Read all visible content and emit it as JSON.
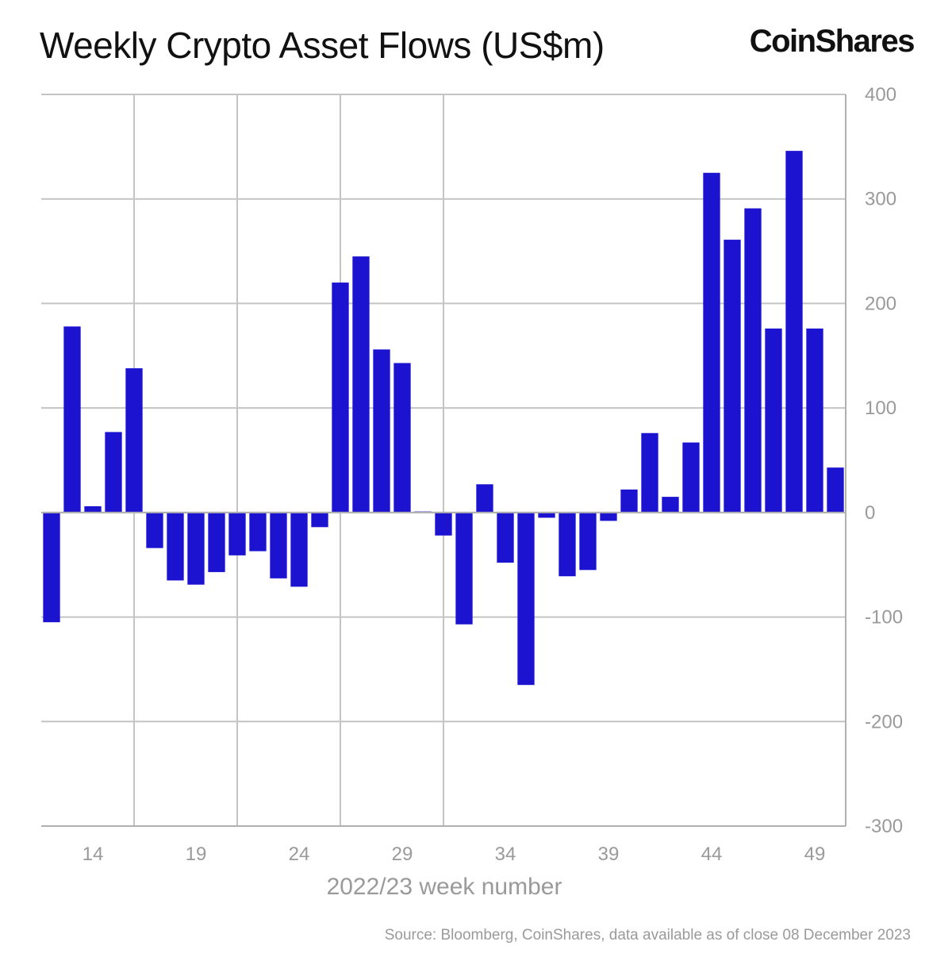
{
  "title": "Weekly Crypto Asset Flows (US$m)",
  "logo": "CoinShares",
  "source": "Source: Bloomberg, CoinShares, data available as of close 08 December 2023",
  "colors": {
    "bar": "#1c13d1",
    "grid": "#c4c4c4",
    "axis_text": "#9a9a9a"
  },
  "chart_data": {
    "type": "bar",
    "xlabel": "2022/23 week number",
    "ylabel": "",
    "ylim": [
      -300,
      400
    ],
    "yticks": [
      400,
      300,
      200,
      100,
      0,
      -100,
      -200,
      -300
    ],
    "y_axis_side": "right",
    "grid": true,
    "x_range": [
      11.5,
      50.5
    ],
    "xtick_values": [
      14,
      19,
      24,
      29,
      34,
      39,
      44,
      49
    ],
    "categories": [
      12,
      13,
      14,
      15,
      16,
      17,
      18,
      19,
      20,
      21,
      22,
      23,
      24,
      25,
      26,
      27,
      28,
      29,
      30,
      31,
      32,
      33,
      34,
      35,
      36,
      37,
      38,
      39,
      40,
      41,
      42,
      43,
      44,
      45,
      46,
      47,
      48,
      49,
      50
    ],
    "values": [
      -105,
      178,
      6,
      77,
      138,
      -34,
      -65,
      -69,
      -57,
      -41,
      -37,
      -63,
      -71,
      -14,
      220,
      245,
      156,
      143,
      1,
      -22,
      -107,
      27,
      -48,
      -165,
      -5,
      -61,
      -55,
      -8,
      22,
      76,
      15,
      67,
      325,
      261,
      291,
      176,
      346,
      176,
      43
    ]
  }
}
